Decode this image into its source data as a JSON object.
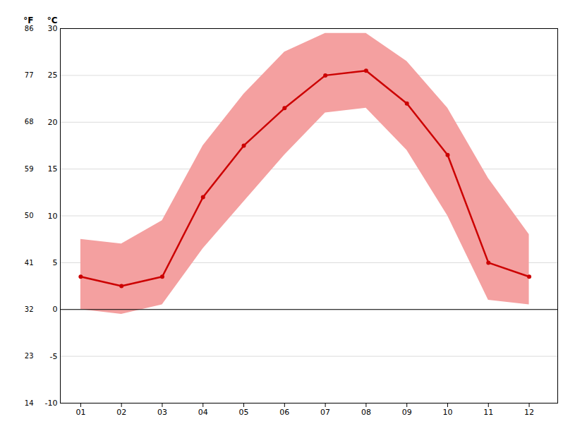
{
  "chart_data": {
    "type": "line",
    "x": [
      1,
      2,
      3,
      4,
      5,
      6,
      7,
      8,
      9,
      10,
      11,
      12
    ],
    "xlim": [
      0.5,
      12.7
    ],
    "xticks": [
      {
        "value": 1,
        "label": "01"
      },
      {
        "value": 2,
        "label": "02"
      },
      {
        "value": 3,
        "label": "03"
      },
      {
        "value": 4,
        "label": "04"
      },
      {
        "value": 5,
        "label": "05"
      },
      {
        "value": 6,
        "label": "06"
      },
      {
        "value": 7,
        "label": "07"
      },
      {
        "value": 8,
        "label": "08"
      },
      {
        "value": 9,
        "label": "09"
      },
      {
        "value": 10,
        "label": "10"
      },
      {
        "value": 11,
        "label": "11"
      },
      {
        "value": 12,
        "label": "12"
      }
    ],
    "ylabel": "°C",
    "ylim": [
      -10,
      30
    ],
    "yticks": [
      -10,
      -5,
      0,
      5,
      10,
      15,
      20,
      25,
      30
    ],
    "y2label": "°F",
    "y2lim": [
      14,
      86
    ],
    "y2ticks": [
      14,
      23,
      32,
      41,
      50,
      59,
      68,
      77,
      86
    ],
    "grid": true,
    "series": [
      {
        "type": "area",
        "color": "#f4a0a0",
        "min": [
          0.0,
          -0.5,
          0.5,
          6.5,
          11.5,
          16.5,
          21.0,
          21.5,
          17.0,
          10.0,
          1.0,
          0.5
        ],
        "max": [
          7.5,
          7.0,
          9.5,
          17.5,
          23.0,
          27.5,
          29.5,
          29.5,
          26.5,
          21.5,
          14.0,
          8.0
        ]
      },
      {
        "type": "line",
        "color": "#cc0000",
        "marker": "circle",
        "values": [
          3.5,
          2.5,
          3.5,
          12.0,
          17.5,
          21.5,
          25.0,
          25.5,
          22.0,
          16.5,
          5.0,
          3.5
        ]
      }
    ]
  }
}
